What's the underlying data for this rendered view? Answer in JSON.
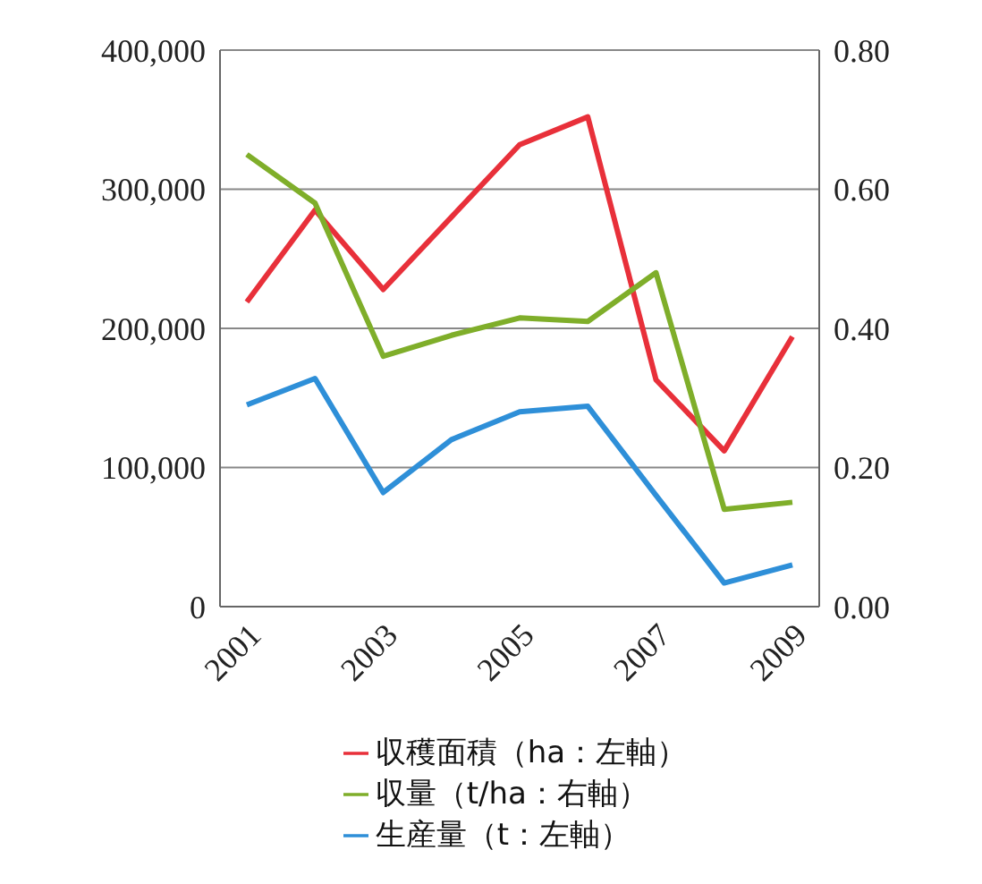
{
  "chart_data": {
    "type": "line",
    "categories": [
      "2001",
      null,
      "2003",
      null,
      "2005",
      null,
      "2007",
      null,
      "2009"
    ],
    "series": [
      {
        "name": "生産量（t：左軸）",
        "color": "#2e8fd8",
        "values": [
          145000,
          164000,
          82000,
          120000,
          140000,
          144000,
          80000,
          17000,
          30000
        ]
      },
      {
        "name": "収穫面積（ha：左軸）",
        "color": "#e8303a",
        "values": [
          219000,
          285000,
          228000,
          280000,
          332000,
          352000,
          163000,
          112000,
          194000
        ]
      },
      {
        "name": "収量（t/ha：右軸）",
        "color": "#7fae2a",
        "axis": "y2",
        "values": [
          0.65,
          0.58,
          0.36,
          0.39,
          0.415,
          0.41,
          0.48,
          0.14,
          0.15
        ]
      }
    ],
    "ylim": [
      0,
      400000
    ],
    "yticks": [
      {
        "value": 0,
        "label": "0"
      },
      {
        "value": 100000,
        "label": "100,000"
      },
      {
        "value": 200000,
        "label": "200,000"
      },
      {
        "value": 300000,
        "label": "300,000"
      },
      {
        "value": 400000,
        "label": "400,000"
      }
    ],
    "y2lim": [
      0,
      0.8
    ],
    "y2ticks": [
      {
        "value": 0,
        "label": "0.00"
      },
      {
        "value": 0.2,
        "label": "0.20"
      },
      {
        "value": 0.4,
        "label": "0.40"
      },
      {
        "value": 0.6,
        "label": "0.60"
      },
      {
        "value": 0.8,
        "label": "0.80"
      }
    ],
    "grid": "y",
    "legend": "bottom",
    "marker": "none",
    "line_style": "solid"
  }
}
